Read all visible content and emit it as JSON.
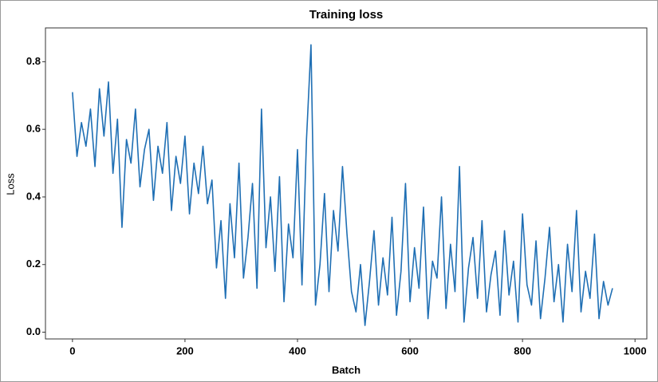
{
  "chart_data": {
    "type": "line",
    "title": "Training loss",
    "xlabel": "Batch",
    "ylabel": "Loss",
    "x": [
      0,
      8,
      16,
      24,
      32,
      40,
      48,
      56,
      64,
      72,
      80,
      88,
      96,
      104,
      112,
      120,
      128,
      136,
      144,
      152,
      160,
      168,
      176,
      184,
      192,
      200,
      208,
      216,
      224,
      232,
      240,
      248,
      256,
      264,
      272,
      280,
      288,
      296,
      304,
      312,
      320,
      328,
      336,
      344,
      352,
      360,
      368,
      376,
      384,
      392,
      400,
      408,
      416,
      424,
      432,
      440,
      448,
      456,
      464,
      472,
      480,
      488,
      496,
      504,
      512,
      520,
      528,
      536,
      544,
      552,
      560,
      568,
      576,
      584,
      592,
      600,
      608,
      616,
      624,
      632,
      640,
      648,
      656,
      664,
      672,
      680,
      688,
      696,
      704,
      712,
      720,
      728,
      736,
      744,
      752,
      760,
      768,
      776,
      784,
      792,
      800,
      808,
      816,
      824,
      832,
      840,
      848,
      856,
      864,
      872,
      880,
      888,
      896,
      904,
      912,
      920,
      928,
      936,
      944,
      952,
      960
    ],
    "series": [
      {
        "name": "Loss",
        "color": "#1f6fb4",
        "values": [
          0.71,
          0.52,
          0.62,
          0.55,
          0.66,
          0.49,
          0.72,
          0.58,
          0.74,
          0.47,
          0.63,
          0.31,
          0.57,
          0.5,
          0.66,
          0.43,
          0.54,
          0.6,
          0.39,
          0.55,
          0.47,
          0.62,
          0.36,
          0.52,
          0.44,
          0.58,
          0.35,
          0.5,
          0.41,
          0.55,
          0.38,
          0.45,
          0.19,
          0.33,
          0.1,
          0.38,
          0.22,
          0.5,
          0.16,
          0.28,
          0.44,
          0.13,
          0.66,
          0.25,
          0.4,
          0.18,
          0.46,
          0.09,
          0.32,
          0.22,
          0.54,
          0.14,
          0.57,
          0.85,
          0.08,
          0.2,
          0.41,
          0.12,
          0.36,
          0.24,
          0.49,
          0.29,
          0.12,
          0.06,
          0.2,
          0.02,
          0.15,
          0.3,
          0.08,
          0.22,
          0.11,
          0.34,
          0.05,
          0.18,
          0.44,
          0.09,
          0.25,
          0.13,
          0.37,
          0.04,
          0.21,
          0.16,
          0.4,
          0.07,
          0.26,
          0.12,
          0.49,
          0.03,
          0.19,
          0.28,
          0.1,
          0.33,
          0.06,
          0.17,
          0.24,
          0.05,
          0.3,
          0.11,
          0.21,
          0.03,
          0.35,
          0.14,
          0.08,
          0.27,
          0.04,
          0.16,
          0.31,
          0.09,
          0.2,
          0.03,
          0.26,
          0.12,
          0.36,
          0.06,
          0.18,
          0.1,
          0.29,
          0.04,
          0.15,
          0.08,
          0.13
        ]
      }
    ],
    "xlim": [
      -48,
      1021
    ],
    "ylim": [
      -0.02,
      0.9
    ],
    "xticks": [
      0,
      200,
      400,
      600,
      800,
      1000
    ],
    "yticks": [
      {
        "value": 0,
        "label": "0.0"
      },
      0.2,
      0.4,
      0.6,
      0.8
    ]
  }
}
